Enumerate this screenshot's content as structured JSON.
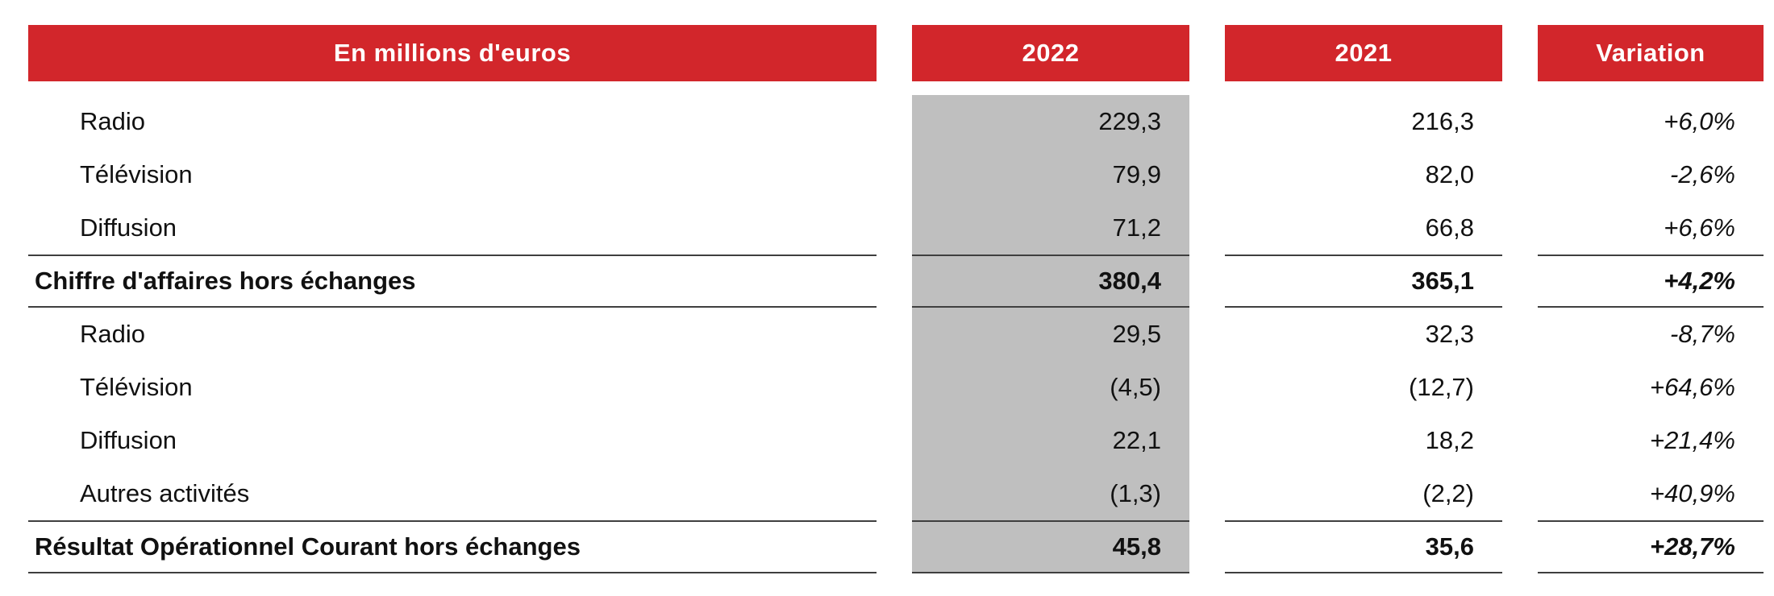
{
  "colors": {
    "header_red": "#D2262B",
    "col_2022_gray": "#BFBFBF",
    "rule_line": "#3f3f3f"
  },
  "table": {
    "headers": {
      "label": "En millions d'euros",
      "col2022": "2022",
      "col2021": "2021",
      "variation": "Variation"
    },
    "rows": [
      {
        "label": "Radio",
        "v2022": "229,3",
        "v2021": "216,3",
        "variation": "+6,0%",
        "indent": true,
        "bold": false
      },
      {
        "label": "Télévision",
        "v2022": "79,9",
        "v2021": "82,0",
        "variation": "-2,6%",
        "indent": true,
        "bold": false
      },
      {
        "label": "Diffusion",
        "v2022": "71,2",
        "v2021": "66,8",
        "variation": "+6,6%",
        "indent": true,
        "bold": false
      },
      {
        "label": "Chiffre d'affaires hors échanges",
        "v2022": "380,4",
        "v2021": "365,1",
        "variation": "+4,2%",
        "indent": false,
        "bold": true
      },
      {
        "label": "Radio",
        "v2022": "29,5",
        "v2021": "32,3",
        "variation": "-8,7%",
        "indent": true,
        "bold": false
      },
      {
        "label": "Télévision",
        "v2022": "(4,5)",
        "v2021": "(12,7)",
        "variation": "+64,6%",
        "indent": true,
        "bold": false
      },
      {
        "label": "Diffusion",
        "v2022": "22,1",
        "v2021": "18,2",
        "variation": "+21,4%",
        "indent": true,
        "bold": false
      },
      {
        "label": "Autres activités",
        "v2022": "(1,3)",
        "v2021": "(2,2)",
        "variation": "+40,9%",
        "indent": true,
        "bold": false
      },
      {
        "label": "Résultat Opérationnel Courant hors échanges",
        "v2022": "45,8",
        "v2021": "35,6",
        "variation": "+28,7%",
        "indent": false,
        "bold": true
      }
    ]
  }
}
